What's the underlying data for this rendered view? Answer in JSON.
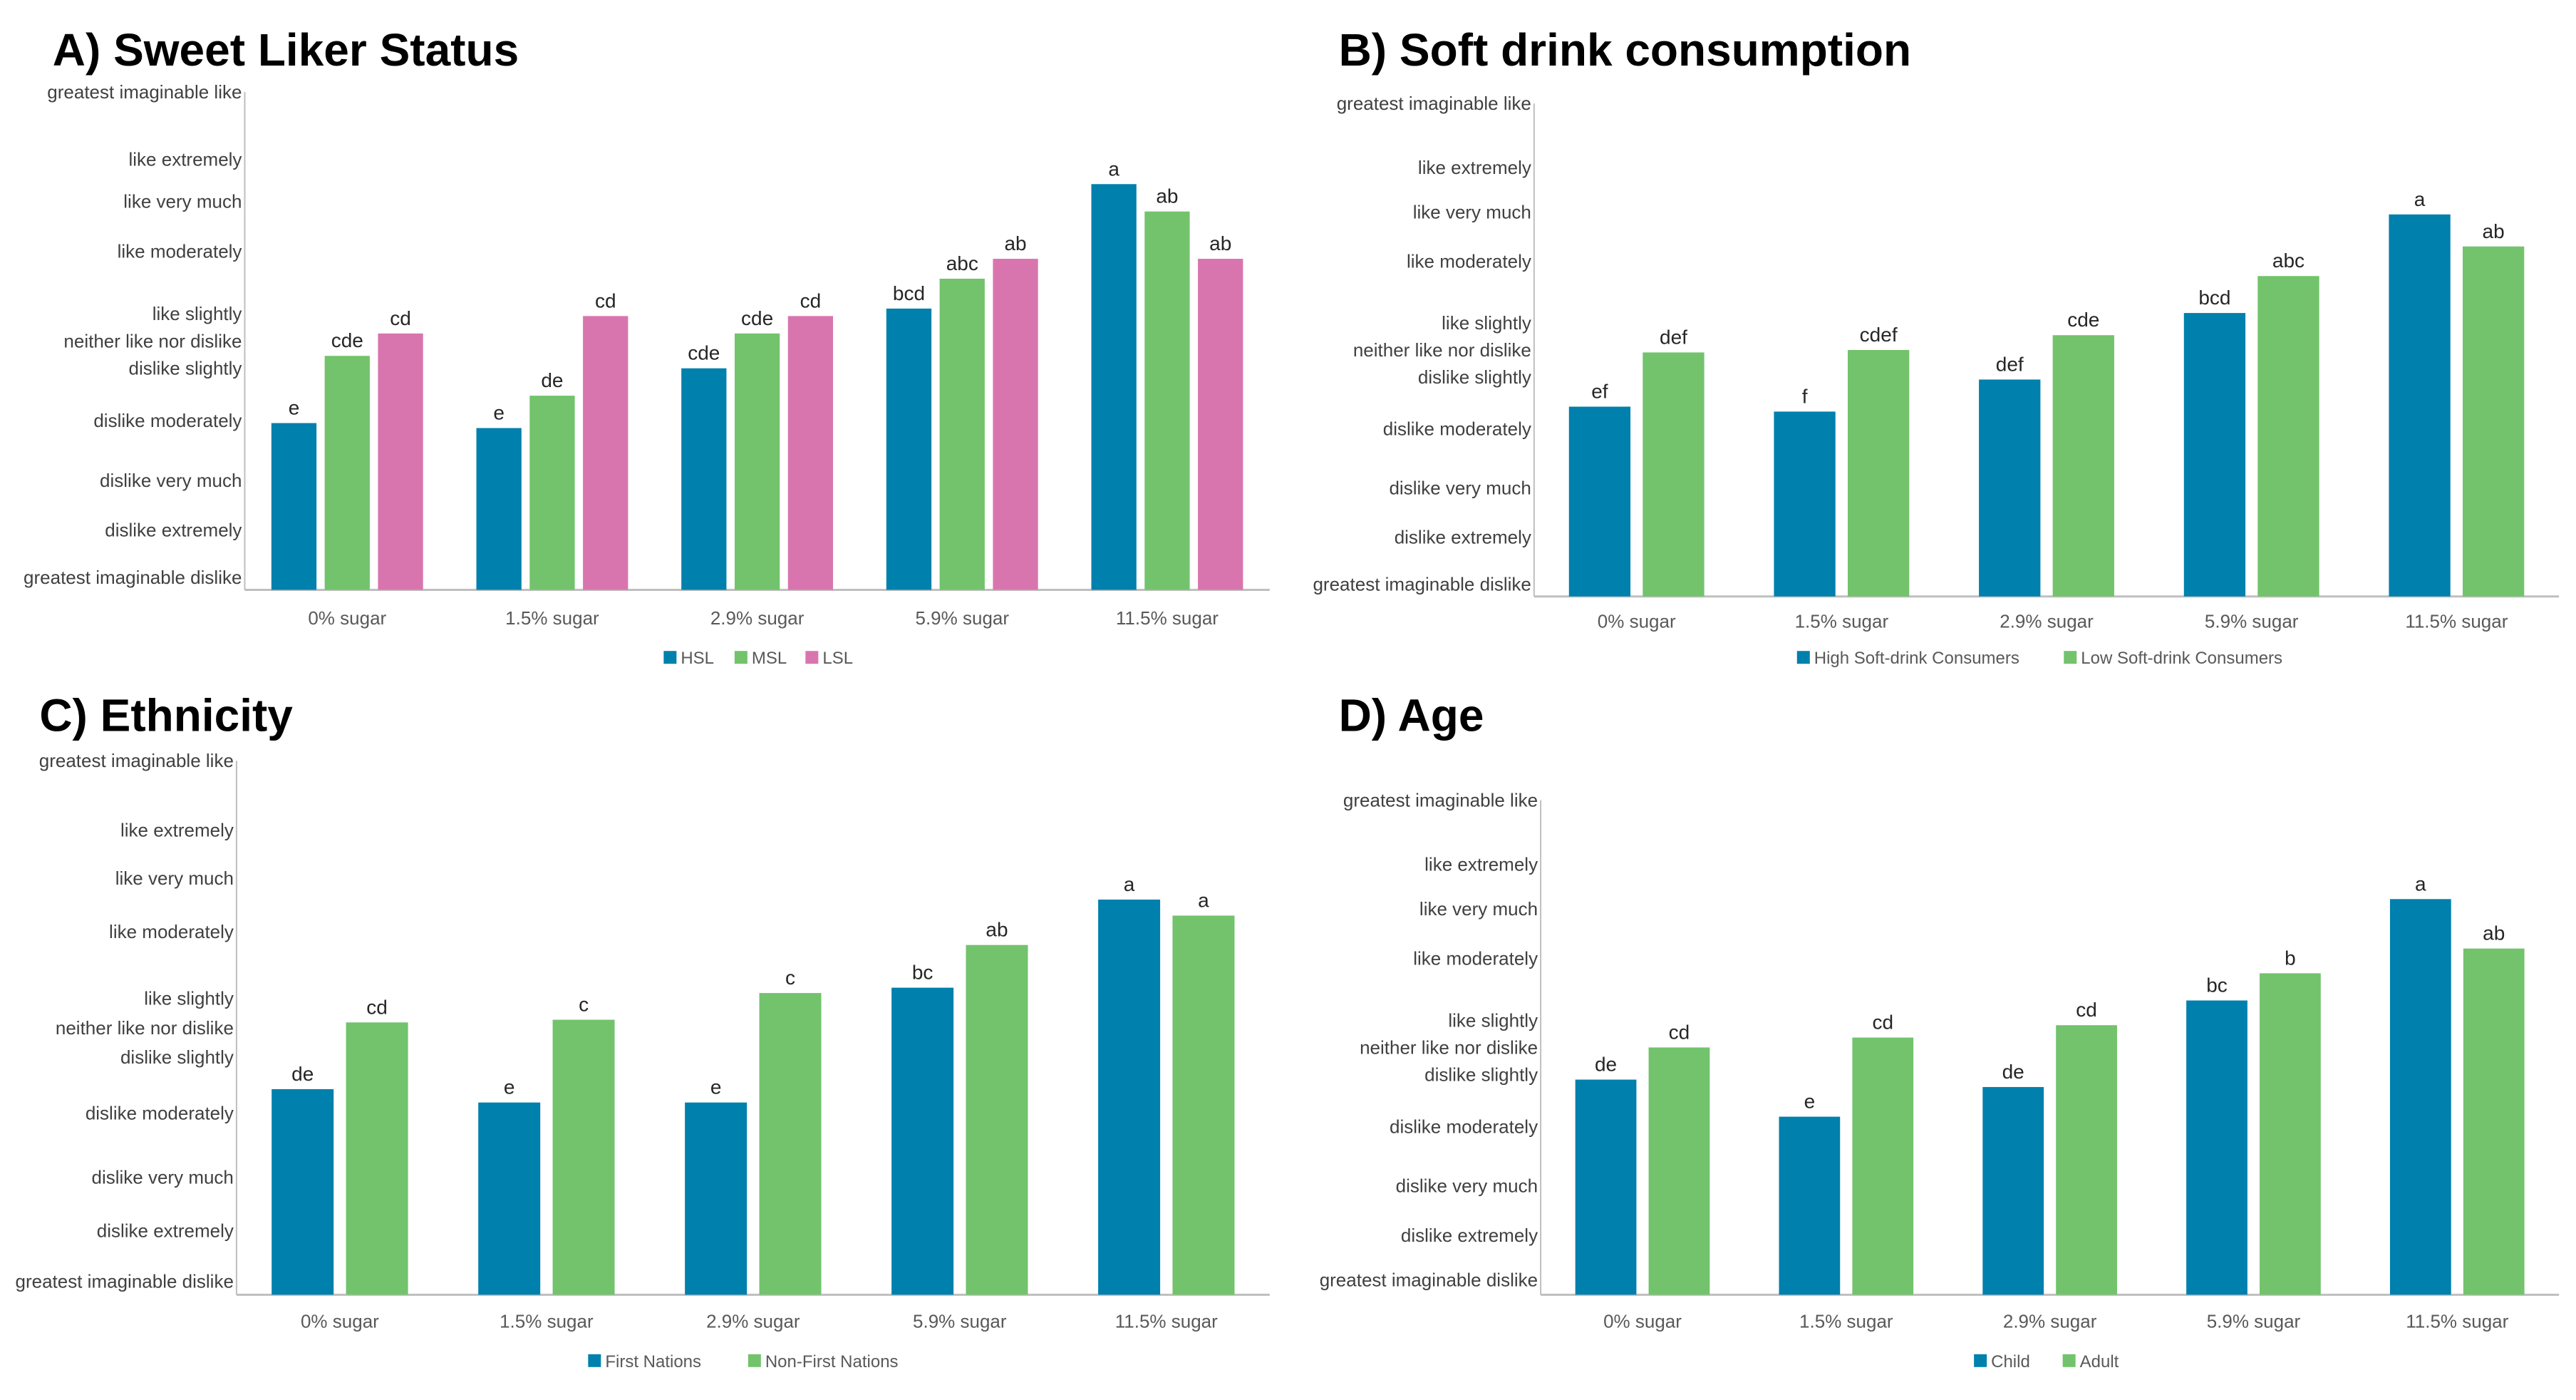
{
  "colors": {
    "blue": "#0080AC",
    "green": "#72C36C",
    "pink": "#D975AE",
    "axis": "#BFBFBF"
  },
  "chart_data": [
    {
      "id": "A",
      "type": "bar",
      "title": "A) Sweet Liker Status",
      "xlabel": "",
      "ylabel": "",
      "ylim": [
        -100,
        100
      ],
      "grid": false,
      "legend_position": "bottom",
      "categories": [
        "0% sugar",
        "1.5% sugar",
        "2.9% sugar",
        "5.9% sugar",
        "11.5% sugar"
      ],
      "y_tick_labels": [
        {
          "label": "greatest imaginable like",
          "value": 100
        },
        {
          "label": "like extremely",
          "value": 73
        },
        {
          "label": "like very much",
          "value": 56
        },
        {
          "label": "like moderately",
          "value": 36
        },
        {
          "label": "like slightly",
          "value": 11
        },
        {
          "label": "neither like nor dislike",
          "value": 0
        },
        {
          "label": "dislike slightly",
          "value": -11
        },
        {
          "label": "dislike moderately",
          "value": -32
        },
        {
          "label": "dislike very much",
          "value": -56
        },
        {
          "label": "dislike extremely",
          "value": -76
        },
        {
          "label": "greatest imaginable dislike",
          "value": -95
        }
      ],
      "series": [
        {
          "name": "HSL",
          "color": "#0080AC",
          "values": [
            -33,
            -35,
            -11,
            13,
            63
          ],
          "labels": [
            "e",
            "e",
            "cde",
            "bcd",
            "a"
          ]
        },
        {
          "name": "MSL",
          "color": "#72C36C",
          "values": [
            -6,
            -22,
            3,
            25,
            52
          ],
          "labels": [
            "cde",
            "de",
            "cde",
            "abc",
            "ab"
          ]
        },
        {
          "name": "LSL",
          "color": "#D975AE",
          "values": [
            3,
            10,
            10,
            33,
            33
          ],
          "labels": [
            "cd",
            "cd",
            "cd",
            "ab",
            "ab"
          ]
        }
      ]
    },
    {
      "id": "B",
      "type": "bar",
      "title": "B) Soft drink consumption",
      "xlabel": "",
      "ylabel": "",
      "ylim": [
        -100,
        100
      ],
      "grid": false,
      "legend_position": "bottom",
      "categories": [
        "0% sugar",
        "1.5% sugar",
        "2.9% sugar",
        "5.9% sugar",
        "11.5% sugar"
      ],
      "y_tick_labels": [
        {
          "label": "greatest imaginable like",
          "value": 100
        },
        {
          "label": "like extremely",
          "value": 74
        },
        {
          "label": "like very much",
          "value": 56
        },
        {
          "label": "like moderately",
          "value": 36
        },
        {
          "label": "like slightly",
          "value": 11
        },
        {
          "label": "neither like nor dislike",
          "value": 0
        },
        {
          "label": "dislike slightly",
          "value": -11
        },
        {
          "label": "dislike moderately",
          "value": -32
        },
        {
          "label": "dislike very much",
          "value": -56
        },
        {
          "label": "dislike extremely",
          "value": -76
        },
        {
          "label": "greatest imaginable dislike",
          "value": -95
        }
      ],
      "series": [
        {
          "name": "High Soft-drink Consumers",
          "color": "#0080AC",
          "values": [
            -23,
            -25,
            -12,
            15,
            55
          ],
          "labels": [
            "ef",
            "f",
            "def",
            "bcd",
            "a"
          ]
        },
        {
          "name": "Low Soft-drink Consumers",
          "color": "#72C36C",
          "values": [
            -1,
            0,
            6,
            30,
            42
          ],
          "labels": [
            "def",
            "cdef",
            "cde",
            "abc",
            "ab"
          ]
        }
      ]
    },
    {
      "id": "C",
      "type": "bar",
      "title": "C) Ethnicity",
      "xlabel": "",
      "ylabel": "",
      "ylim": [
        -100,
        100
      ],
      "grid": false,
      "legend_position": "bottom",
      "categories": [
        "0% sugar",
        "1.5% sugar",
        "2.9% sugar",
        "5.9% sugar",
        "11.5% sugar"
      ],
      "y_tick_labels": [
        {
          "label": "greatest imaginable like",
          "value": 100
        },
        {
          "label": "like extremely",
          "value": 74
        },
        {
          "label": "like very much",
          "value": 56
        },
        {
          "label": "like moderately",
          "value": 36
        },
        {
          "label": "like slightly",
          "value": 11
        },
        {
          "label": "neither like nor dislike",
          "value": 0
        },
        {
          "label": "dislike slightly",
          "value": -11
        },
        {
          "label": "dislike moderately",
          "value": -32
        },
        {
          "label": "dislike very much",
          "value": -56
        },
        {
          "label": "dislike extremely",
          "value": -76
        },
        {
          "label": "greatest imaginable dislike",
          "value": -95
        }
      ],
      "series": [
        {
          "name": "First Nations",
          "color": "#0080AC",
          "values": [
            -23,
            -28,
            -28,
            15,
            48
          ],
          "labels": [
            "de",
            "e",
            "e",
            "bc",
            "a"
          ]
        },
        {
          "name": "Non-First Nations",
          "color": "#72C36C",
          "values": [
            2,
            3,
            13,
            31,
            42
          ],
          "labels": [
            "cd",
            "c",
            "c",
            "ab",
            "a"
          ]
        }
      ]
    },
    {
      "id": "D",
      "type": "bar",
      "title": "D) Age",
      "xlabel": "",
      "ylabel": "",
      "ylim": [
        -100,
        100
      ],
      "grid": false,
      "legend_position": "bottom",
      "categories": [
        "0% sugar",
        "1.5% sugar",
        "2.9% sugar",
        "5.9% sugar",
        "11.5% sugar"
      ],
      "y_tick_labels": [
        {
          "label": "greatest imaginable like",
          "value": 100
        },
        {
          "label": "like extremely",
          "value": 74
        },
        {
          "label": "like very much",
          "value": 56
        },
        {
          "label": "like moderately",
          "value": 36
        },
        {
          "label": "like slightly",
          "value": 11
        },
        {
          "label": "neither like nor dislike",
          "value": 0
        },
        {
          "label": "dislike slightly",
          "value": -11
        },
        {
          "label": "dislike moderately",
          "value": -32
        },
        {
          "label": "dislike very much",
          "value": -56
        },
        {
          "label": "dislike extremely",
          "value": -76
        },
        {
          "label": "greatest imaginable dislike",
          "value": -94
        }
      ],
      "series": [
        {
          "name": "Child",
          "color": "#0080AC",
          "values": [
            -13,
            -28,
            -16,
            19,
            60
          ],
          "labels": [
            "de",
            "e",
            "de",
            "bc",
            "a"
          ]
        },
        {
          "name": "Adult",
          "color": "#72C36C",
          "values": [
            0,
            4,
            9,
            30,
            40
          ],
          "labels": [
            "cd",
            "cd",
            "cd",
            "b",
            "ab"
          ]
        }
      ]
    }
  ]
}
